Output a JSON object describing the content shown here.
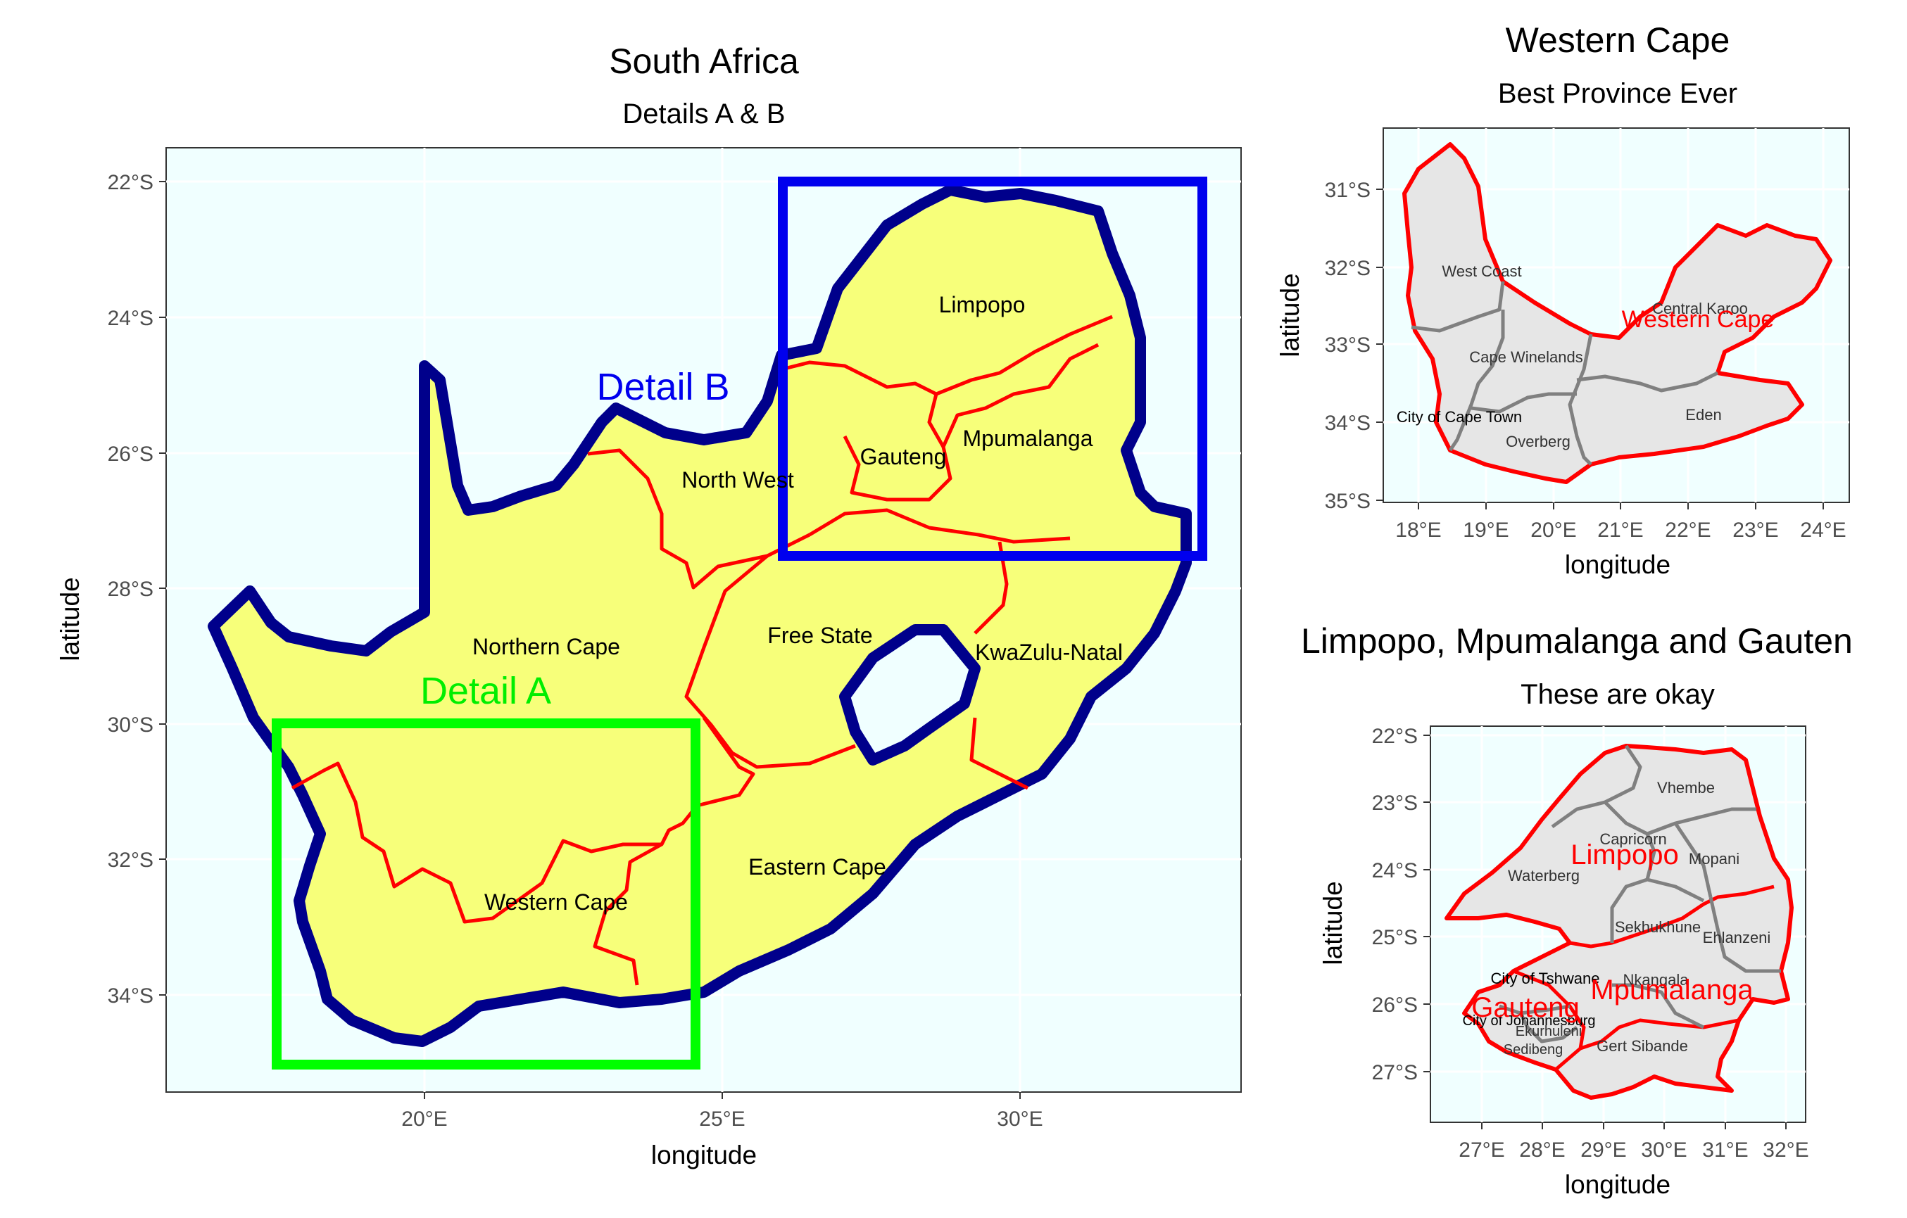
{
  "panels": {
    "main": {
      "title": "South Africa",
      "subtitle": "Details A & B",
      "xlabel": "longitude",
      "ylabel": "latitude",
      "x_ticks": [
        "20°E",
        "25°E",
        "30°E"
      ],
      "y_ticks": [
        "22°S",
        "24°S",
        "26°S",
        "28°S",
        "30°S",
        "32°S",
        "34°S"
      ],
      "province_labels": [
        "Limpopo",
        "Mpumalanga",
        "Gauteng",
        "North West",
        "Northern Cape",
        "Free State",
        "KwaZulu-Natal",
        "Western Cape",
        "Eastern Cape"
      ],
      "detail_a_label": "Detail A",
      "detail_b_label": "Detail B"
    },
    "western_cape": {
      "title": "Western Cape",
      "subtitle": "Best Province Ever",
      "xlabel": "longitude",
      "ylabel": "latitude",
      "x_ticks": [
        "18°E",
        "19°E",
        "20°E",
        "21°E",
        "22°E",
        "23°E",
        "24°E"
      ],
      "y_ticks": [
        "31°S",
        "32°S",
        "33°S",
        "34°S",
        "35°S"
      ],
      "district_labels": [
        "West Coast",
        "Central Karoo",
        "Cape Winelands",
        "City of Cape Town",
        "Eden",
        "Overberg"
      ],
      "province_label": "Western Cape"
    },
    "limpopo": {
      "title": "Limpopo, Mpumalanga and Gauten",
      "subtitle": "These are okay",
      "xlabel": "longitude",
      "ylabel": "latitude",
      "x_ticks": [
        "27°E",
        "28°E",
        "29°E",
        "30°E",
        "31°E",
        "32°E"
      ],
      "y_ticks": [
        "22°S",
        "23°S",
        "24°S",
        "25°S",
        "26°S",
        "27°S"
      ],
      "district_labels": [
        "Vhembe",
        "Capricorn",
        "Mopani",
        "Waterberg",
        "Sekhukhune",
        "Ehlanzeni",
        "City of Tshwane",
        "Nkangala",
        "City of Johannesburg",
        "Ekurhuleni",
        "Sedibeng",
        "Gert Sibande"
      ],
      "province_labels": [
        "Limpopo",
        "Mpumalanga",
        "Gauteng"
      ]
    }
  },
  "colors": {
    "panel_bg": "#f0ffff",
    "land_fill": "#f7ff7a",
    "country_border": "#00008b",
    "province_border": "#ff0000",
    "detail_a": "#00ff00",
    "detail_b": "#0000ee",
    "district_fill": "#e6e6e6",
    "district_border": "#808080"
  },
  "icons": [
    "south-africa-map",
    "western-cape-map",
    "limpopo-mpumalanga-gauteng-map"
  ]
}
